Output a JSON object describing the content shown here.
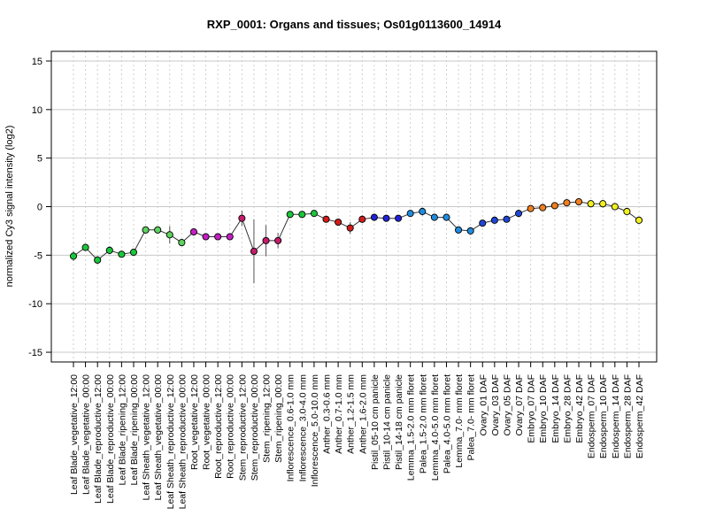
{
  "chart_data": {
    "type": "line",
    "title": "RXP_0001: Organs and tissues; Os01g0113600_14914",
    "xlabel": "",
    "ylabel": "normalized Cy3 signal intensity (log2)",
    "ylim": [
      -16,
      16
    ],
    "yticks": [
      -15,
      -10,
      -5,
      0,
      5,
      10,
      15
    ],
    "grid": "horizontal solid at y ticks, vertical dotted at every category",
    "categories": [
      "Leaf Blade_vegetative_12:00",
      "Leaf Blade_vegetative_00:00",
      "Leaf Blade_reproductive_12:00",
      "Leaf Blade_reproductive_00:00",
      "Leaf Blade_ripening_12:00",
      "Leaf Blade_ripening_00:00",
      "Leaf Sheath_vegetative_12:00",
      "Leaf Sheath_vegetative_00:00",
      "Leaf Sheath_reproductive_12:00",
      "Leaf Sheath_reproductive_00:00",
      "Root_vegetative_12:00",
      "Root_vegetative_00:00",
      "Root_reproductive_12:00",
      "Root_reproductive_00:00",
      "Stem_reproductive_12:00",
      "Stem_reproductive_00:00",
      "Stem_ripening_12:00",
      "Stem_ripening_00:00",
      "Inflorescence_0.6-1.0 mm",
      "Inflorescence_3.0-4.0 mm",
      "Inflorescence_5.0-10.0 mm",
      "Anther_0.3-0.6 mm",
      "Anther_0.7-1.0 mm",
      "Anther_1.2-1.5 mm",
      "Anther_1.6-2.0 mm",
      "Pistil_05-10 cm panicle",
      "Pistil_10-14 cm panicle",
      "Pistil_14-18 cm panicle",
      "Lemma_1.5-2.0 mm floret",
      "Palea_1.5-2.0 mm floret",
      "Lemma_4.0-5.0 mm floret",
      "Palea_4.0-5.0 mm floret",
      "Lemma_7.0- mm floret",
      "Palea_7.0- mm floret",
      "Ovary_01 DAF",
      "Ovary_03 DAF",
      "Ovary_05 DAF",
      "Ovary_07 DAF",
      "Embryo_07 DAF",
      "Embryo_10 DAF",
      "Embryo_14 DAF",
      "Embryo_28 DAF",
      "Embryo_42 DAF",
      "Endosperm_07 DAF",
      "Endosperm_10 DAF",
      "Endosperm_14 DAF",
      "Endosperm_28 DAF",
      "Endosperm_42 DAF"
    ],
    "values": [
      -5.1,
      -4.2,
      -5.5,
      -4.5,
      -4.9,
      -4.7,
      -2.4,
      -2.4,
      -2.9,
      -3.7,
      -2.6,
      -3.1,
      -3.1,
      -3.1,
      -1.2,
      -4.6,
      -3.5,
      -3.5,
      -0.8,
      -0.8,
      -0.7,
      -1.3,
      -1.6,
      -2.2,
      -1.3,
      -1.1,
      -1.2,
      -1.2,
      -0.7,
      -0.5,
      -1.1,
      -1.1,
      -2.4,
      -2.5,
      -1.7,
      -1.4,
      -1.3,
      -0.7,
      -0.2,
      -0.1,
      0.1,
      0.4,
      0.5,
      0.3,
      0.3,
      0.0,
      -0.5,
      -1.4
    ],
    "error": [
      0.5,
      0.3,
      0.4,
      0.4,
      0.2,
      0.2,
      0.2,
      0.2,
      0.9,
      0.3,
      0.2,
      0.2,
      0.2,
      0.2,
      0.8,
      3.3,
      1.6,
      0.8,
      0.2,
      0.2,
      0.2,
      0.2,
      0.3,
      0.6,
      0.4,
      0.2,
      0.2,
      0.2,
      0.2,
      0.4,
      0.2,
      0.2,
      0.3,
      0.4,
      0.2,
      0.2,
      0.2,
      0.4,
      0.2,
      0.2,
      0.2,
      0.2,
      0.2,
      0.2,
      0.4,
      0.2,
      0.2,
      0.3
    ],
    "colors": [
      "#1ac73b",
      "#1ac73b",
      "#1ac73b",
      "#1ac73b",
      "#1ac73b",
      "#1ac73b",
      "#5ed35e",
      "#5ed35e",
      "#5ed35e",
      "#5ed35e",
      "#c41ec4",
      "#c41ec4",
      "#c41ec4",
      "#c41ec4",
      "#c41c6c",
      "#c41c6c",
      "#c41c6c",
      "#c41c6c",
      "#1ac73b",
      "#1ac73b",
      "#1ac73b",
      "#d21c1c",
      "#d21c1c",
      "#d21c1c",
      "#d21c1c",
      "#2222d4",
      "#2222d4",
      "#2222d4",
      "#1e8ce0",
      "#1e8ce0",
      "#1e8ce0",
      "#1e8ce0",
      "#1e8ce0",
      "#1e8ce0",
      "#1f46d8",
      "#1f46d8",
      "#1f46d8",
      "#1f46d8",
      "#f08020",
      "#f08020",
      "#f08020",
      "#f08020",
      "#f08020",
      "#f0f020",
      "#f0f020",
      "#f0f020",
      "#f0f020",
      "#f0f020"
    ]
  }
}
